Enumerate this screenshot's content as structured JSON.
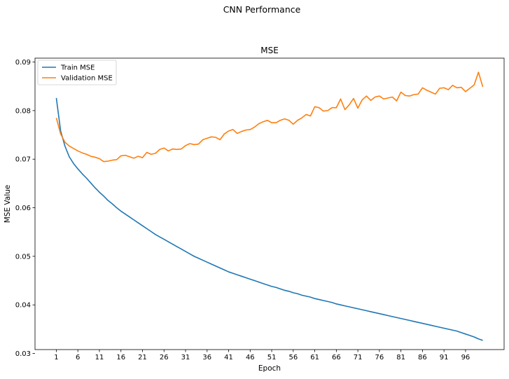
{
  "figure": {
    "suptitle": "CNN Performance"
  },
  "chart_data": {
    "type": "line",
    "title": "MSE",
    "xlabel": "Epoch",
    "ylabel": "MSE Value",
    "xlim": [
      -3.95,
      104.95
    ],
    "ylim": [
      0.0308,
      0.0908
    ],
    "xticks": [
      1,
      6,
      11,
      16,
      21,
      26,
      31,
      36,
      41,
      46,
      51,
      56,
      61,
      66,
      71,
      76,
      81,
      86,
      91,
      96
    ],
    "yticks": [
      0.03,
      0.04,
      0.05,
      0.06,
      0.07,
      0.08,
      0.09
    ],
    "ytick_labels": [
      "0.03",
      "0.04",
      "0.05",
      "0.06",
      "0.07",
      "0.08",
      "0.09"
    ],
    "grid": false,
    "legend_position": "upper left",
    "series": [
      {
        "name": "Train MSE",
        "color": "#1f77b4",
        "values": [
          0.0826,
          0.0758,
          0.0727,
          0.0705,
          0.0691,
          0.068,
          0.067,
          0.0661,
          0.0651,
          0.0641,
          0.0632,
          0.0624,
          0.0615,
          0.0608,
          0.06,
          0.0593,
          0.0587,
          0.0581,
          0.0575,
          0.0569,
          0.0563,
          0.0557,
          0.0551,
          0.0545,
          0.054,
          0.0535,
          0.053,
          0.0525,
          0.052,
          0.0515,
          0.051,
          0.0505,
          0.05,
          0.0496,
          0.0492,
          0.0488,
          0.0484,
          0.048,
          0.0476,
          0.0472,
          0.0468,
          0.0465,
          0.0462,
          0.0459,
          0.0456,
          0.0453,
          0.045,
          0.0447,
          0.0444,
          0.0441,
          0.0438,
          0.0436,
          0.0433,
          0.043,
          0.0428,
          0.0425,
          0.0423,
          0.042,
          0.0418,
          0.0416,
          0.0413,
          0.0411,
          0.0409,
          0.0407,
          0.0405,
          0.0402,
          0.04,
          0.0398,
          0.0396,
          0.0394,
          0.0392,
          0.039,
          0.0388,
          0.0386,
          0.0384,
          0.0382,
          0.038,
          0.0378,
          0.0376,
          0.0374,
          0.0372,
          0.037,
          0.0368,
          0.0366,
          0.0364,
          0.0362,
          0.036,
          0.0358,
          0.0356,
          0.0354,
          0.0352,
          0.035,
          0.0348,
          0.0346,
          0.0343,
          0.034,
          0.0337,
          0.0334,
          0.033,
          0.0327
        ]
      },
      {
        "name": "Validation MSE",
        "color": "#ff7f0e",
        "values": [
          0.0785,
          0.0752,
          0.0735,
          0.0727,
          0.0722,
          0.0717,
          0.0713,
          0.071,
          0.0706,
          0.0704,
          0.0701,
          0.0695,
          0.0696,
          0.0698,
          0.0699,
          0.0707,
          0.0708,
          0.0705,
          0.0702,
          0.0706,
          0.0703,
          0.0714,
          0.071,
          0.0712,
          0.072,
          0.0723,
          0.0717,
          0.0721,
          0.072,
          0.0721,
          0.0728,
          0.0732,
          0.073,
          0.0731,
          0.074,
          0.0743,
          0.0746,
          0.0745,
          0.074,
          0.0752,
          0.0758,
          0.0761,
          0.0753,
          0.0757,
          0.076,
          0.0761,
          0.0766,
          0.0773,
          0.0777,
          0.078,
          0.0775,
          0.0775,
          0.078,
          0.0783,
          0.078,
          0.0772,
          0.078,
          0.0785,
          0.0792,
          0.0789,
          0.0808,
          0.0806,
          0.0799,
          0.08,
          0.0806,
          0.0806,
          0.0824,
          0.0802,
          0.0812,
          0.0825,
          0.0805,
          0.0822,
          0.083,
          0.0821,
          0.0828,
          0.083,
          0.0824,
          0.0826,
          0.0828,
          0.082,
          0.0838,
          0.0831,
          0.083,
          0.0833,
          0.0834,
          0.0847,
          0.0842,
          0.0838,
          0.0834,
          0.0846,
          0.0847,
          0.0843,
          0.0852,
          0.0847,
          0.0848,
          0.0839,
          0.0846,
          0.0853,
          0.0879,
          0.0849
        ]
      }
    ]
  }
}
